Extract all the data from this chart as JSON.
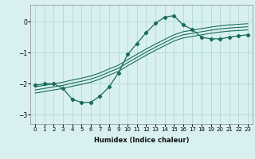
{
  "xlabel": "Humidex (Indice chaleur)",
  "bg_color": "#d8f0f0",
  "line_color": "#1a6b5a",
  "grid_color": "#aad4d4",
  "xlim": [
    -0.5,
    23.5
  ],
  "ylim": [
    -3.3,
    0.55
  ],
  "yticks": [
    0,
    -1,
    -2,
    -3
  ],
  "xticks": [
    0,
    1,
    2,
    3,
    4,
    5,
    6,
    7,
    8,
    9,
    10,
    11,
    12,
    13,
    14,
    15,
    16,
    17,
    18,
    19,
    20,
    21,
    22,
    23
  ],
  "curve1_x": [
    0,
    1,
    2,
    3,
    4,
    5,
    6,
    7,
    8,
    9,
    10,
    11,
    12,
    13,
    14,
    15,
    16,
    17,
    18,
    19,
    20,
    21,
    22,
    23
  ],
  "curve1_y": [
    -2.05,
    -2.0,
    -2.0,
    -2.15,
    -2.5,
    -2.6,
    -2.6,
    -2.4,
    -2.1,
    -1.65,
    -1.05,
    -0.7,
    -0.35,
    -0.05,
    0.15,
    0.2,
    -0.1,
    -0.25,
    -0.5,
    -0.55,
    -0.55,
    -0.5,
    -0.45,
    -0.42
  ],
  "curve2_x": [
    0,
    1,
    2,
    3,
    4,
    5,
    6,
    7,
    8,
    9,
    10,
    11,
    12,
    13,
    14,
    15,
    16,
    17,
    18,
    19,
    20,
    21,
    22,
    23
  ],
  "curve2_y": [
    -2.1,
    -2.05,
    -2.0,
    -1.95,
    -1.88,
    -1.82,
    -1.75,
    -1.65,
    -1.52,
    -1.4,
    -1.22,
    -1.05,
    -0.88,
    -0.72,
    -0.57,
    -0.42,
    -0.32,
    -0.27,
    -0.22,
    -0.17,
    -0.13,
    -0.1,
    -0.08,
    -0.06
  ],
  "curve3_x": [
    0,
    1,
    2,
    3,
    4,
    5,
    6,
    7,
    8,
    9,
    10,
    11,
    12,
    13,
    14,
    15,
    16,
    17,
    18,
    19,
    20,
    21,
    22,
    23
  ],
  "curve3_y": [
    -2.2,
    -2.15,
    -2.1,
    -2.05,
    -1.98,
    -1.92,
    -1.85,
    -1.75,
    -1.62,
    -1.5,
    -1.32,
    -1.15,
    -0.98,
    -0.82,
    -0.67,
    -0.52,
    -0.42,
    -0.37,
    -0.32,
    -0.27,
    -0.23,
    -0.2,
    -0.18,
    -0.16
  ],
  "curve4_x": [
    0,
    1,
    2,
    3,
    4,
    5,
    6,
    7,
    8,
    9,
    10,
    11,
    12,
    13,
    14,
    15,
    16,
    17,
    18,
    19,
    20,
    21,
    22,
    23
  ],
  "curve4_y": [
    -2.3,
    -2.25,
    -2.2,
    -2.15,
    -2.08,
    -2.02,
    -1.95,
    -1.85,
    -1.72,
    -1.6,
    -1.42,
    -1.25,
    -1.08,
    -0.92,
    -0.77,
    -0.62,
    -0.52,
    -0.47,
    -0.42,
    -0.37,
    -0.33,
    -0.3,
    -0.28,
    -0.26
  ]
}
